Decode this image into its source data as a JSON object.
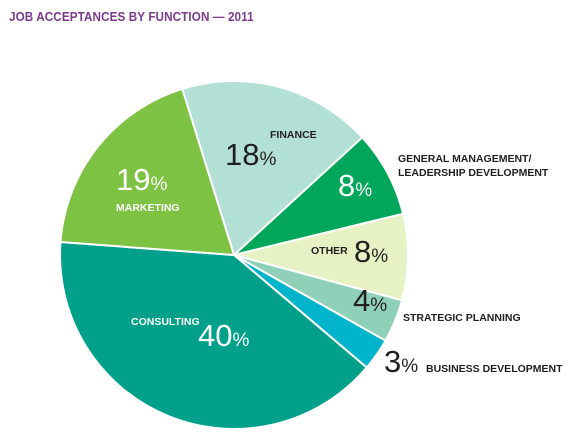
{
  "title": "JOB ACCEPTANCES BY FUNCTION — 2011",
  "colors": {
    "title": "#7a3b8c",
    "text_dark": "#231f20",
    "text_light": "#ffffff"
  },
  "chart_data": {
    "type": "pie",
    "title": "JOB ACCEPTANCES BY FUNCTION — 2011",
    "slices": [
      {
        "label": "FINANCE",
        "label_lines": [
          "FINANCE"
        ],
        "value": 18,
        "value_text": "18",
        "color": "#b3e0d4",
        "label_color": "#231f20"
      },
      {
        "label": "GENERAL MANAGEMENT/ LEADERSHIP DEVELOPMENT",
        "label_lines": [
          "GENERAL MANAGEMENT/",
          "LEADERSHIP DEVELOPMENT"
        ],
        "value": 8,
        "value_text": "8",
        "color": "#00a65a",
        "label_color": "#231f20",
        "value_color": "#ffffff"
      },
      {
        "label": "OTHER",
        "label_lines": [
          "OTHER"
        ],
        "value": 8,
        "value_text": "8",
        "color": "#e6f2c4",
        "label_color": "#231f20"
      },
      {
        "label": "STRATEGIC PLANNING",
        "label_lines": [
          "STRATEGIC PLANNING"
        ],
        "value": 4,
        "value_text": "4",
        "color": "#8fd0b8",
        "label_color": "#231f20"
      },
      {
        "label": "BUSINESS DEVELOPMENT",
        "label_lines": [
          "BUSINESS DEVELOPMENT"
        ],
        "value": 3,
        "value_text": "3",
        "color": "#00b4cc",
        "label_color": "#231f20"
      },
      {
        "label": "CONSULTING",
        "label_lines": [
          "CONSULTING"
        ],
        "value": 40,
        "value_text": "40",
        "color": "#00a08a",
        "label_color": "#ffffff"
      },
      {
        "label": "MARKETING",
        "label_lines": [
          "MARKETING"
        ],
        "value": 19,
        "value_text": "19",
        "color": "#7dc242",
        "label_color": "#ffffff"
      }
    ],
    "percent_symbol": "%",
    "start_angle_deg": -17.3,
    "direction": "clockwise"
  }
}
